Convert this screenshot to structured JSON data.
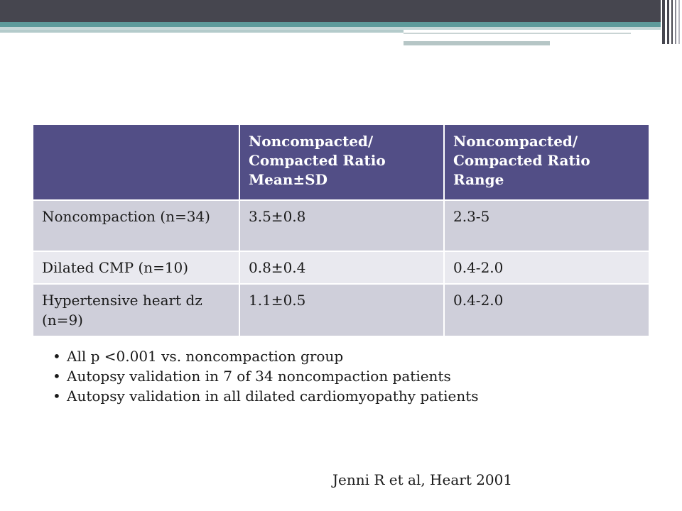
{
  "table": {
    "headers": [
      "",
      "Noncompacted/ Compacted Ratio Mean±SD",
      "Noncompacted/ Compacted Ratio Range"
    ],
    "rows": [
      [
        "Noncompaction (n=34)",
        "3.5±0.8",
        "2.3-5"
      ],
      [
        "Dilated CMP (n=10)",
        "0.8±0.4",
        "0.4-2.0"
      ],
      [
        "Hypertensive heart dz (n=9)",
        "1.1±0.5",
        "0.4-2.0"
      ]
    ]
  },
  "bullets": [
    "All p <0.001 vs. noncompaction group",
    "Autopsy validation in 7 of 34 noncompaction patients",
    "Autopsy validation in all dilated cardiomyopathy patients"
  ],
  "citation": "Jenni R et al, Heart 2001",
  "colors": {
    "header_bar": "#46464f",
    "accent_teal": "#5e9b9b",
    "table_header": "#524e86",
    "row_dark": "#cfcfda",
    "row_light": "#e9e9ef"
  }
}
